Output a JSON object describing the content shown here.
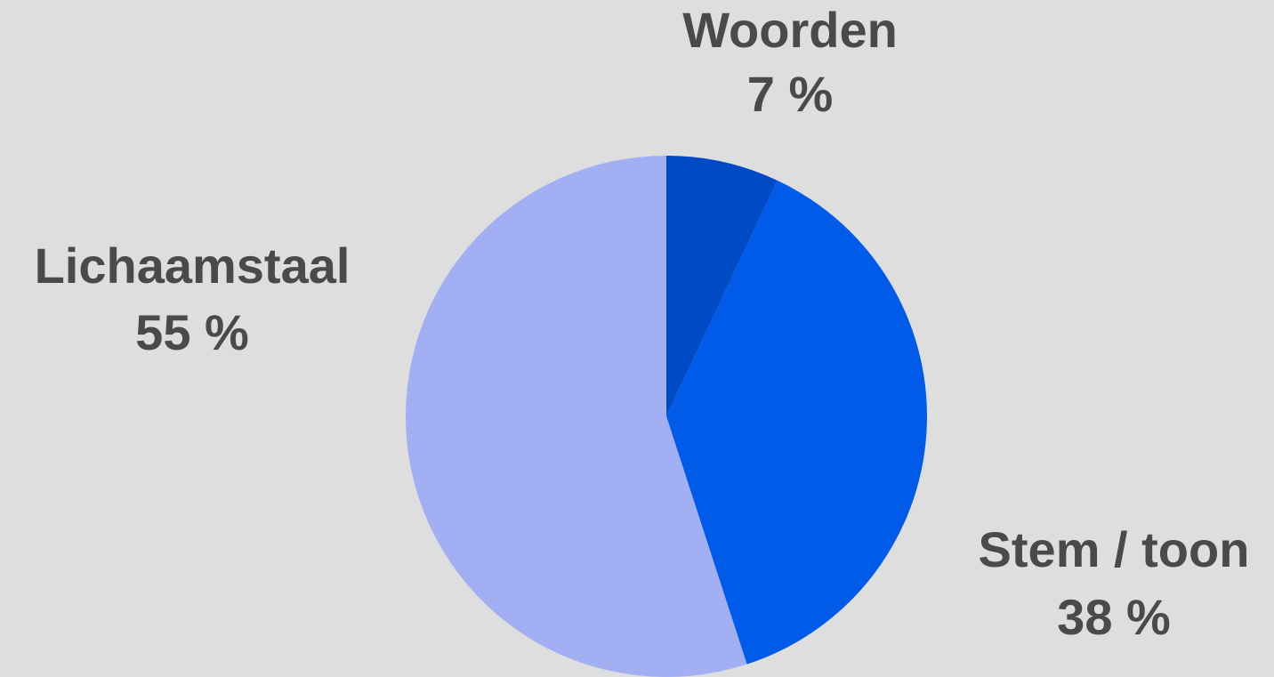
{
  "chart_data": {
    "type": "pie",
    "categories": [
      "Woorden",
      "Stem / toon",
      "Lichaamstaal"
    ],
    "values": [
      7,
      38,
      55
    ],
    "value_labels": [
      "7 %",
      "38 %",
      "55 %"
    ],
    "colors": [
      "#004ac6",
      "#005ce8",
      "#a2aff2"
    ]
  }
}
